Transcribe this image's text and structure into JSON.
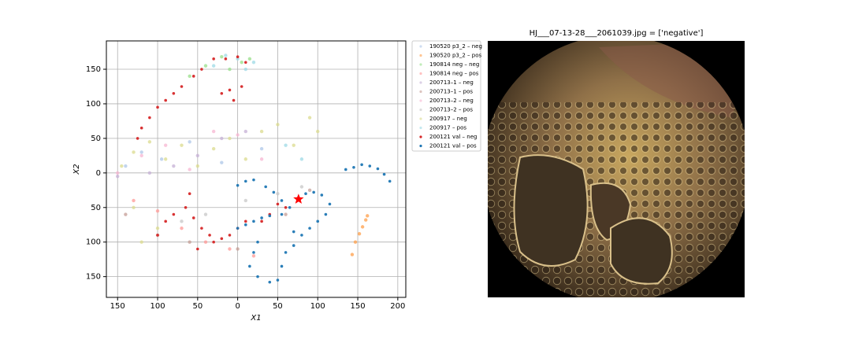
{
  "chart_data": [
    {
      "type": "scatter",
      "xlabel": "X1",
      "ylabel": "X2",
      "xlim": [
        -164,
        210
      ],
      "ylim": [
        -180,
        191
      ],
      "xticks": [
        {
          "value": -150,
          "label": "150"
        },
        {
          "value": -100,
          "label": "100"
        },
        {
          "value": -50,
          "label": "50"
        },
        0,
        50,
        100,
        150,
        200
      ],
      "yticks": [
        {
          "value": -150,
          "label": "150"
        },
        {
          "value": -100,
          "label": "100"
        },
        {
          "value": -50,
          "label": "50"
        },
        0,
        50,
        100,
        150
      ],
      "grid": true,
      "legend": "outside-right",
      "series": [
        {
          "name": "190520 p3_2 – neg",
          "color": "#aec7e8",
          "x": [
            -140,
            -120,
            -95,
            -60,
            -20,
            30
          ],
          "y": [
            10,
            30,
            20,
            45,
            15,
            35
          ]
        },
        {
          "name": "190520 p3_2 – pos",
          "color": "#ff9f4a",
          "x": [
            143,
            147,
            152,
            156,
            160,
            162
          ],
          "y": [
            -118,
            -100,
            -88,
            -78,
            -68,
            -62
          ]
        },
        {
          "name": "190814 neg – neg",
          "color": "#98df8a",
          "x": [
            -60,
            -40,
            -20,
            -10,
            5,
            15
          ],
          "y": [
            140,
            155,
            168,
            150,
            160,
            165
          ]
        },
        {
          "name": "190814 neg – pos",
          "color": "#ff9896",
          "x": [
            -130,
            -100,
            -70,
            -40,
            -10,
            20
          ],
          "y": [
            -40,
            -55,
            -80,
            -100,
            -110,
            -120
          ]
        },
        {
          "name": "200713–1 – neg",
          "color": "#c5b0d5",
          "x": [
            -150,
            -110,
            -80,
            -50,
            -20,
            10
          ],
          "y": [
            -5,
            0,
            10,
            25,
            50,
            60
          ]
        },
        {
          "name": "200713–1 – pos",
          "color": "#c49c94",
          "x": [
            -140,
            -100,
            -60,
            0,
            60,
            90
          ],
          "y": [
            -60,
            -90,
            -100,
            -110,
            -60,
            -25
          ]
        },
        {
          "name": "200713–2 – neg",
          "color": "#f7b6d2",
          "x": [
            -150,
            -120,
            -90,
            -60,
            -30,
            0,
            30
          ],
          "y": [
            0,
            25,
            40,
            5,
            60,
            55,
            20
          ]
        },
        {
          "name": "200713–2 – pos",
          "color": "#c7c7c7",
          "x": [
            -70,
            -40,
            10,
            50,
            80
          ],
          "y": [
            -70,
            -60,
            -40,
            -30,
            -20
          ]
        },
        {
          "name": "200917 – neg",
          "color": "#dbdb8d",
          "x": [
            -145,
            -130,
            -110,
            -90,
            -70,
            -50,
            -30,
            -10,
            10,
            30,
            50,
            70,
            90,
            100,
            -130,
            -100,
            -120
          ],
          "y": [
            10,
            30,
            45,
            20,
            40,
            10,
            35,
            50,
            20,
            60,
            70,
            40,
            80,
            60,
            -50,
            -80,
            -100
          ]
        },
        {
          "name": "200917 – pos",
          "color": "#9edae5",
          "x": [
            -30,
            -15,
            0,
            10,
            20,
            60,
            80
          ],
          "y": [
            155,
            170,
            165,
            150,
            160,
            40,
            20
          ]
        },
        {
          "name": "200121 val – neg",
          "color": "#d62728",
          "x": [
            -125,
            -120,
            -110,
            -100,
            -90,
            -80,
            -70,
            -55,
            -45,
            -30,
            -15,
            0,
            10,
            -20,
            -10,
            5,
            -5,
            -60,
            -65,
            -55,
            -45,
            -35,
            -20,
            -10,
            0,
            10,
            -90,
            -100,
            -80,
            -30,
            -50,
            40,
            60,
            30,
            50
          ],
          "y": [
            50,
            65,
            80,
            95,
            105,
            115,
            125,
            140,
            150,
            165,
            165,
            168,
            160,
            115,
            120,
            125,
            105,
            -30,
            -50,
            -65,
            -80,
            -90,
            -95,
            -90,
            -80,
            -70,
            -70,
            -90,
            -60,
            -100,
            -110,
            -60,
            -50,
            -70,
            -45
          ]
        },
        {
          "name": "200121 val – pos",
          "color": "#1f77b4",
          "x": [
            135,
            145,
            155,
            165,
            175,
            183,
            190,
            0,
            10,
            20,
            35,
            45,
            55,
            65,
            85,
            95,
            105,
            115,
            110,
            100,
            90,
            80,
            70,
            55,
            40,
            30,
            20,
            10,
            0,
            25,
            20,
            15,
            25,
            40,
            50,
            55,
            60,
            70
          ],
          "y": [
            5,
            8,
            12,
            10,
            6,
            -2,
            -12,
            -18,
            -12,
            -10,
            -20,
            -28,
            -40,
            -50,
            -30,
            -28,
            -32,
            -45,
            -60,
            -70,
            -80,
            -90,
            -85,
            -60,
            -62,
            -65,
            -70,
            -75,
            -80,
            -100,
            -115,
            -135,
            -150,
            -158,
            -155,
            -135,
            -115,
            -105
          ]
        }
      ],
      "highlight": {
        "x": 76,
        "y": -38,
        "color": "#ff0000"
      }
    },
    {
      "type": "image",
      "title": "HJ___07-13-28___2061039.jpg = ['negative']"
    }
  ]
}
